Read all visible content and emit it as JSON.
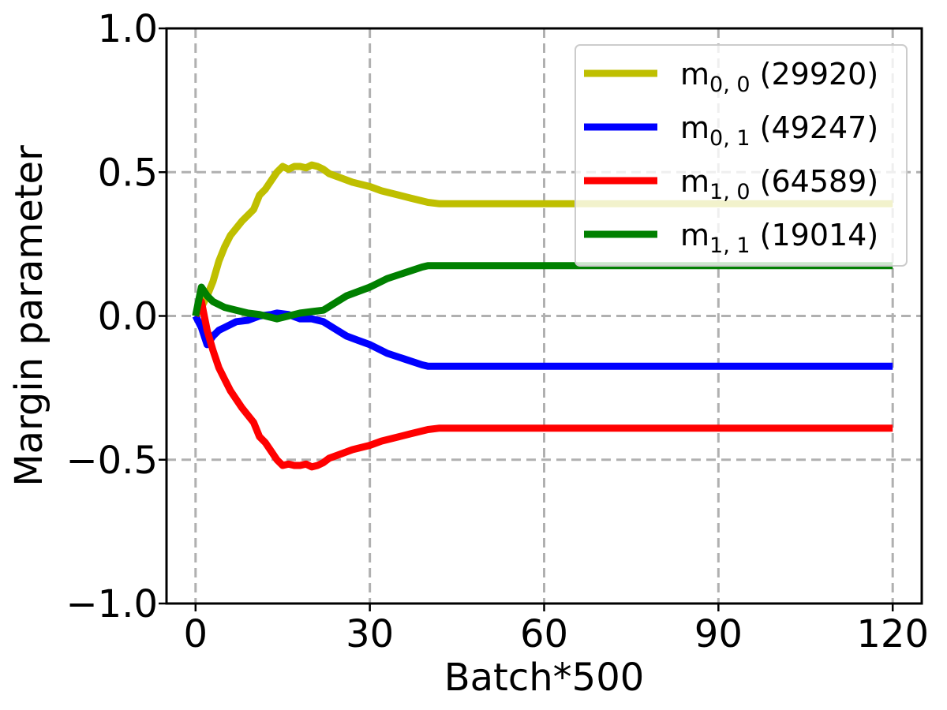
{
  "chart_data": {
    "type": "line",
    "xlabel": "Batch*500",
    "ylabel": "Margin parameter",
    "xlim": [
      -5,
      125
    ],
    "ylim": [
      -1.0,
      1.0
    ],
    "x_ticks": [
      0,
      30,
      60,
      90,
      120
    ],
    "x_tick_labels": [
      "0",
      "30",
      "60",
      "90",
      "120"
    ],
    "y_ticks": [
      -1.0,
      -0.5,
      0.0,
      0.5,
      1.0
    ],
    "y_tick_labels": [
      "−1.0",
      "−0.5",
      "0.0",
      "0.5",
      "1.0"
    ],
    "grid": true,
    "grid_color": "#b0b0b0",
    "legend_position": "top-right",
    "series": [
      {
        "name": "m",
        "subscript": "0, 0",
        "count": "(29920)",
        "color": "#bfbf00",
        "points": [
          [
            0,
            0.0
          ],
          [
            1,
            0.03
          ],
          [
            2,
            0.07
          ],
          [
            3,
            0.12
          ],
          [
            4,
            0.19
          ],
          [
            5,
            0.24
          ],
          [
            6,
            0.28
          ],
          [
            8,
            0.33
          ],
          [
            10,
            0.37
          ],
          [
            11,
            0.42
          ],
          [
            12,
            0.44
          ],
          [
            13,
            0.47
          ],
          [
            14,
            0.5
          ],
          [
            15,
            0.52
          ],
          [
            16,
            0.51
          ],
          [
            17,
            0.52
          ],
          [
            18,
            0.52
          ],
          [
            19,
            0.515
          ],
          [
            20,
            0.525
          ],
          [
            21,
            0.52
          ],
          [
            22,
            0.51
          ],
          [
            23,
            0.495
          ],
          [
            25,
            0.48
          ],
          [
            27,
            0.465
          ],
          [
            30,
            0.45
          ],
          [
            32,
            0.435
          ],
          [
            35,
            0.42
          ],
          [
            37,
            0.41
          ],
          [
            40,
            0.395
          ],
          [
            42,
            0.39
          ],
          [
            60,
            0.39
          ],
          [
            120,
            0.39
          ]
        ]
      },
      {
        "name": "m",
        "subscript": "0, 1",
        "count": "(49247)",
        "color": "#0000ff",
        "points": [
          [
            0,
            0.0
          ],
          [
            1,
            -0.04
          ],
          [
            2,
            -0.1
          ],
          [
            3,
            -0.07
          ],
          [
            4,
            -0.05
          ],
          [
            5,
            -0.04
          ],
          [
            7,
            -0.02
          ],
          [
            9,
            -0.015
          ],
          [
            11,
            0.0
          ],
          [
            13,
            0.005
          ],
          [
            14,
            0.01
          ],
          [
            16,
            0.005
          ],
          [
            18,
            -0.01
          ],
          [
            20,
            -0.01
          ],
          [
            22,
            -0.02
          ],
          [
            24,
            -0.045
          ],
          [
            26,
            -0.07
          ],
          [
            28,
            -0.085
          ],
          [
            30,
            -0.1
          ],
          [
            33,
            -0.13
          ],
          [
            36,
            -0.15
          ],
          [
            39,
            -0.17
          ],
          [
            40,
            -0.175
          ],
          [
            50,
            -0.175
          ],
          [
            120,
            -0.175
          ]
        ]
      },
      {
        "name": "m",
        "subscript": "1, 0",
        "count": "(64589)",
        "color": "#ff0000",
        "points": [
          [
            0,
            0.0
          ],
          [
            1,
            0.05
          ],
          [
            2,
            -0.05
          ],
          [
            3,
            -0.12
          ],
          [
            4,
            -0.18
          ],
          [
            5,
            -0.22
          ],
          [
            6,
            -0.26
          ],
          [
            8,
            -0.32
          ],
          [
            10,
            -0.37
          ],
          [
            11,
            -0.42
          ],
          [
            12,
            -0.44
          ],
          [
            13,
            -0.47
          ],
          [
            14,
            -0.5
          ],
          [
            15,
            -0.52
          ],
          [
            16,
            -0.515
          ],
          [
            17,
            -0.52
          ],
          [
            18,
            -0.52
          ],
          [
            19,
            -0.515
          ],
          [
            20,
            -0.525
          ],
          [
            21,
            -0.52
          ],
          [
            22,
            -0.51
          ],
          [
            23,
            -0.495
          ],
          [
            25,
            -0.48
          ],
          [
            27,
            -0.465
          ],
          [
            30,
            -0.45
          ],
          [
            32,
            -0.435
          ],
          [
            35,
            -0.42
          ],
          [
            37,
            -0.41
          ],
          [
            40,
            -0.395
          ],
          [
            42,
            -0.39
          ],
          [
            60,
            -0.39
          ],
          [
            120,
            -0.39
          ]
        ]
      },
      {
        "name": "m",
        "subscript": "1, 1",
        "count": "(19014)",
        "color": "#008000",
        "points": [
          [
            0,
            0.0
          ],
          [
            1,
            0.1
          ],
          [
            2,
            0.07
          ],
          [
            3,
            0.05
          ],
          [
            5,
            0.03
          ],
          [
            7,
            0.02
          ],
          [
            9,
            0.01
          ],
          [
            11,
            0.005
          ],
          [
            13,
            -0.005
          ],
          [
            14,
            -0.01
          ],
          [
            16,
            0.0
          ],
          [
            18,
            0.01
          ],
          [
            20,
            0.015
          ],
          [
            22,
            0.02
          ],
          [
            24,
            0.045
          ],
          [
            26,
            0.07
          ],
          [
            28,
            0.085
          ],
          [
            30,
            0.1
          ],
          [
            33,
            0.13
          ],
          [
            36,
            0.15
          ],
          [
            39,
            0.17
          ],
          [
            40,
            0.175
          ],
          [
            50,
            0.175
          ],
          [
            120,
            0.175
          ]
        ]
      }
    ]
  }
}
